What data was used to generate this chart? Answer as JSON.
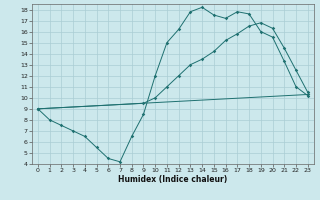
{
  "xlabel": "Humidex (Indice chaleur)",
  "background_color": "#cce8ec",
  "grid_color": "#aacdd4",
  "line_color": "#1e7070",
  "xlim": [
    -0.5,
    23.5
  ],
  "ylim": [
    4,
    18.5
  ],
  "xticks": [
    0,
    1,
    2,
    3,
    4,
    5,
    6,
    7,
    8,
    9,
    10,
    11,
    12,
    13,
    14,
    15,
    16,
    17,
    18,
    19,
    20,
    21,
    22,
    23
  ],
  "yticks": [
    4,
    5,
    6,
    7,
    8,
    9,
    10,
    11,
    12,
    13,
    14,
    15,
    16,
    17,
    18
  ],
  "line1_x": [
    0,
    1,
    2,
    3,
    4,
    5,
    6,
    7,
    8,
    9,
    10,
    11,
    12,
    13,
    14,
    15,
    16,
    17,
    18,
    19,
    20,
    21,
    22,
    23
  ],
  "line1_y": [
    9.0,
    8.0,
    7.5,
    7.0,
    6.5,
    5.5,
    4.5,
    4.2,
    6.5,
    8.5,
    12.0,
    15.0,
    16.2,
    17.8,
    18.2,
    17.5,
    17.2,
    17.8,
    17.6,
    16.0,
    15.5,
    13.3,
    11.0,
    10.2
  ],
  "line2_x": [
    0,
    9,
    10,
    11,
    12,
    13,
    14,
    15,
    16,
    17,
    18,
    19,
    20,
    21,
    22,
    23
  ],
  "line2_y": [
    9.0,
    9.5,
    10.0,
    11.0,
    12.0,
    13.0,
    13.5,
    14.2,
    15.2,
    15.8,
    16.5,
    16.8,
    16.3,
    14.5,
    12.5,
    10.5
  ],
  "line3_x": [
    0,
    23
  ],
  "line3_y": [
    9.0,
    10.3
  ]
}
